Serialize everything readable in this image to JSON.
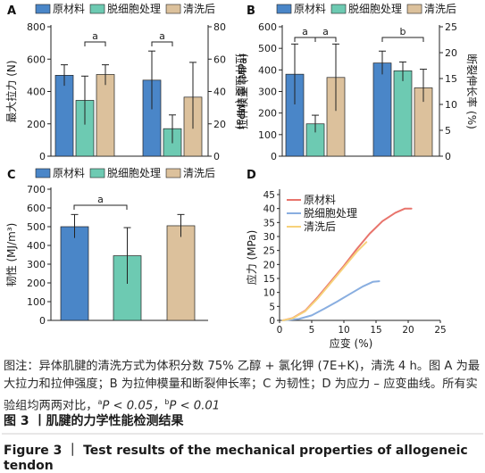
{
  "colors": {
    "raw": "#4a86c8",
    "decell": "#6dcab2",
    "washed": "#dcc19c",
    "curve_raw": "#e8746c",
    "curve_decell": "#89aee0",
    "curve_washed": "#f7d27a",
    "caption_rule": "#d0cfcf"
  },
  "chart_data": [
    {
      "panel": "A",
      "type": "bar",
      "legend": [
        "原材料",
        "脱细胞处理",
        "清洗后"
      ],
      "left_axis": {
        "label": "最大拉力 (N)",
        "ylim": [
          0,
          800
        ],
        "ticks": [
          0,
          200,
          400,
          600,
          800
        ]
      },
      "right_axis": {
        "label": "拉伸强度 (MPa)",
        "ylim": [
          0,
          80
        ],
        "ticks": [
          0,
          20,
          40,
          60,
          80
        ]
      },
      "groups": [
        {
          "metric": "最大拉力",
          "axis": "left",
          "values": [
            500,
            345,
            505
          ],
          "errors": [
            [
              435,
              565
            ],
            [
              195,
              495
            ],
            [
              440,
              565
            ]
          ]
        },
        {
          "metric": "拉伸强度",
          "axis": "right",
          "values": [
            47,
            17,
            36.5
          ],
          "errors": [
            [
              29,
              65
            ],
            [
              8,
              25.5
            ],
            [
              17,
              58
            ]
          ]
        }
      ],
      "significance": [
        {
          "label": "a"
        },
        {
          "label": "a"
        }
      ]
    },
    {
      "panel": "B",
      "type": "bar",
      "legend": [
        "原材料",
        "脱细胞处理",
        "清洗后"
      ],
      "left_axis": {
        "label": "拉伸模量 (MPa)",
        "ylim": [
          0,
          600
        ],
        "ticks": [
          0,
          100,
          200,
          300,
          400,
          500,
          600
        ]
      },
      "right_axis": {
        "label": "断裂伸长率 (%)",
        "ylim": [
          0,
          25
        ],
        "ticks": [
          0,
          5,
          10,
          15,
          20,
          25
        ]
      },
      "groups": [
        {
          "metric": "拉伸模量",
          "axis": "left",
          "values": [
            380,
            150,
            365
          ],
          "errors": [
            [
              240,
              520
            ],
            [
              110,
              190
            ],
            [
              210,
              520
            ]
          ]
        },
        {
          "metric": "断裂伸长率",
          "axis": "right",
          "values": [
            18,
            16.5,
            13.2
          ],
          "errors": [
            [
              15.8,
              20.3
            ],
            [
              14.5,
              18.2
            ],
            [
              10.5,
              16.8
            ]
          ]
        }
      ],
      "significance": [
        {
          "label": "a"
        },
        {
          "label": "a"
        },
        {
          "label": "b"
        }
      ]
    },
    {
      "panel": "C",
      "type": "bar",
      "legend": [
        "原材料",
        "脱细胞处理",
        "清洗后"
      ],
      "left_axis": {
        "label": "韧性 (MJ/m³)",
        "ylim": [
          0,
          700
        ],
        "ticks": [
          0,
          100,
          200,
          300,
          400,
          500,
          600,
          700
        ]
      },
      "groups": [
        {
          "metric": "韧性",
          "axis": "left",
          "values": [
            500,
            345,
            505
          ],
          "errors": [
            [
              440,
              565
            ],
            [
              195,
              495
            ],
            [
              445,
              565
            ]
          ]
        }
      ],
      "significance": [
        {
          "label": "a"
        }
      ]
    },
    {
      "panel": "D",
      "type": "line",
      "xlabel": "应变 (%)",
      "ylabel": "应力 (MPa)",
      "xlim": [
        0,
        25
      ],
      "ylim": [
        0,
        45
      ],
      "xticks": [
        0,
        5,
        10,
        15,
        20,
        25
      ],
      "yticks": [
        0,
        5,
        10,
        15,
        20,
        25,
        30,
        35,
        40,
        45
      ],
      "series": [
        {
          "name": "原材料",
          "points": [
            [
              0.5,
              0
            ],
            [
              2,
              0.8
            ],
            [
              4,
              3.5
            ],
            [
              6,
              8.5
            ],
            [
              8,
              14
            ],
            [
              10,
              19.5
            ],
            [
              12,
              25.5
            ],
            [
              14,
              31
            ],
            [
              16,
              35.5
            ],
            [
              18,
              38.5
            ],
            [
              19.5,
              40
            ],
            [
              20.5,
              40
            ]
          ]
        },
        {
          "name": "脱细胞处理",
          "points": [
            [
              0.5,
              0
            ],
            [
              3,
              0.5
            ],
            [
              5,
              1.8
            ],
            [
              7,
              4.2
            ],
            [
              9,
              6.8
            ],
            [
              11,
              9.5
            ],
            [
              13,
              12.2
            ],
            [
              14.5,
              13.8
            ],
            [
              15.5,
              14
            ]
          ]
        },
        {
          "name": "清洗后",
          "points": [
            [
              0.5,
              0
            ],
            [
              2,
              0.7
            ],
            [
              4,
              3.3
            ],
            [
              6,
              8
            ],
            [
              8,
              13.5
            ],
            [
              10,
              19
            ],
            [
              12,
              24.5
            ],
            [
              13.5,
              28
            ]
          ]
        }
      ]
    }
  ],
  "caption": {
    "body_1": "图注：异体肌腱的清洗方式为体积分数 75% 乙醇 + 氯化钾 (7E+K)，清洗 4 h。图 A 为最大拉力和拉伸强度；B 为拉伸模量和断裂伸长率；C 为韧性；D 为应力 – 应变曲线。所有实验组均两两对比，",
    "sig_a": "a",
    "p_a": "P < 0.05，",
    "sig_b": "b",
    "p_b": "P < 0.01",
    "title_zh": "图 3 丨肌腱的力学性能检测结果",
    "title_en": "Figure 3 ｜ Test results of the mechanical properties of allogeneic tendon"
  }
}
